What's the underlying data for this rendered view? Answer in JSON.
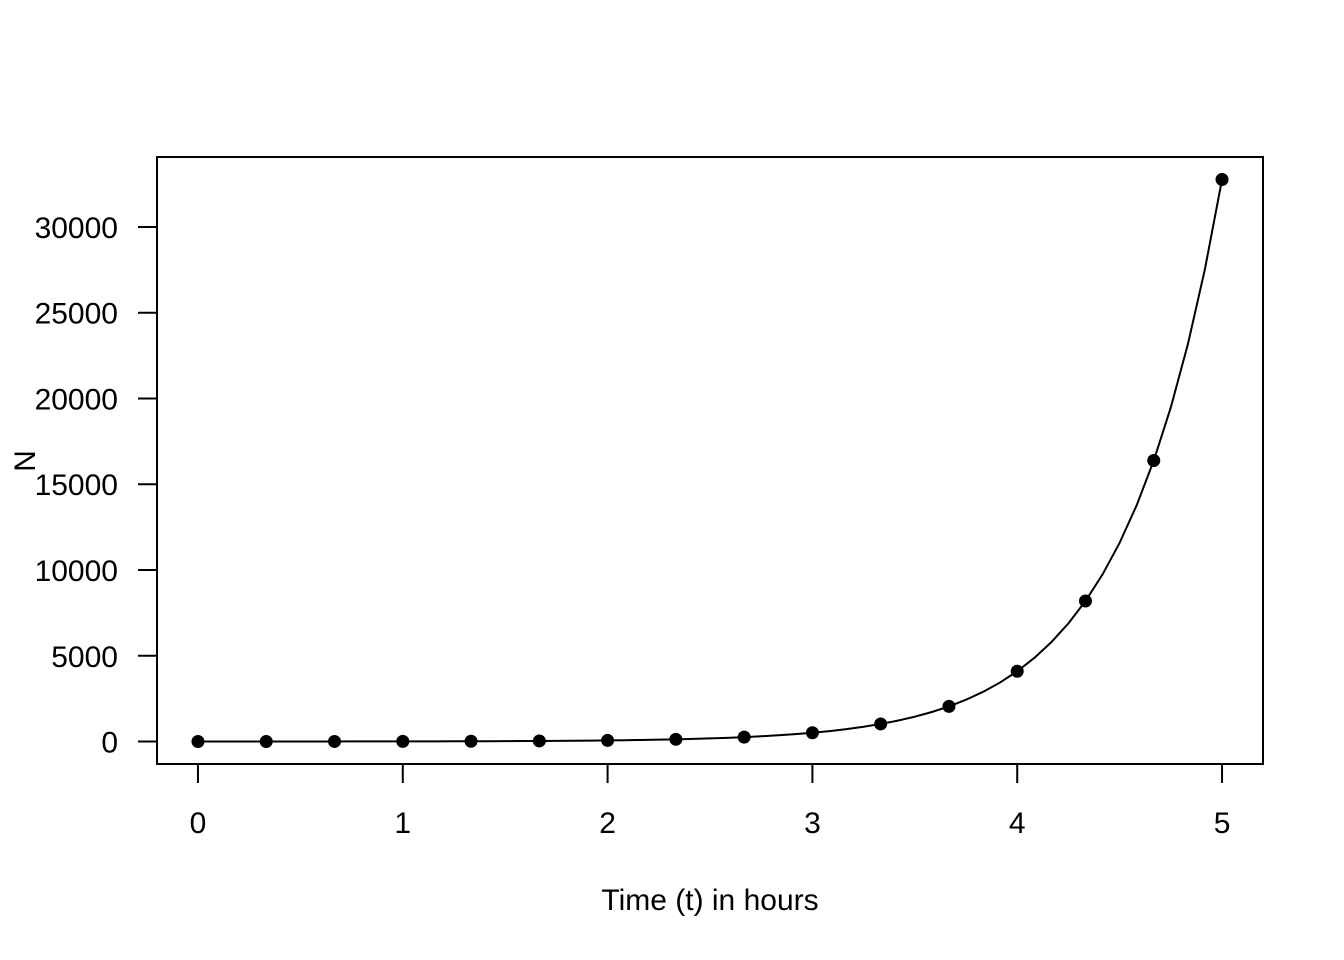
{
  "chart_data": {
    "type": "line",
    "title": "",
    "xlabel": "Time (t) in hours",
    "ylabel": "N",
    "xlim": [
      -0.2,
      5.2
    ],
    "ylim": [
      -1311,
      34079
    ],
    "x_ticks": [
      0,
      1,
      2,
      3,
      4,
      5
    ],
    "y_ticks": [
      0,
      5000,
      10000,
      15000,
      20000,
      25000,
      30000
    ],
    "grid": false,
    "legend": "none",
    "line_color": "#000000",
    "series": [
      {
        "points": [
          {
            "x": 0.0,
            "y": 1
          },
          {
            "x": 0.3333,
            "y": 2
          },
          {
            "x": 0.6667,
            "y": 4
          },
          {
            "x": 1.0,
            "y": 8
          },
          {
            "x": 1.3333,
            "y": 16
          },
          {
            "x": 1.6667,
            "y": 32
          },
          {
            "x": 2.0,
            "y": 64
          },
          {
            "x": 2.3333,
            "y": 128
          },
          {
            "x": 2.6667,
            "y": 256
          },
          {
            "x": 3.0,
            "y": 512
          },
          {
            "x": 3.3333,
            "y": 1024
          },
          {
            "x": 3.6667,
            "y": 2048
          },
          {
            "x": 4.0,
            "y": 4096
          },
          {
            "x": 4.3333,
            "y": 8192
          },
          {
            "x": 4.6667,
            "y": 16384
          },
          {
            "x": 5.0,
            "y": 32768
          }
        ],
        "curve": {
          "formula": "2^(3t)",
          "t_start": 0,
          "t_end": 5
        }
      }
    ]
  }
}
